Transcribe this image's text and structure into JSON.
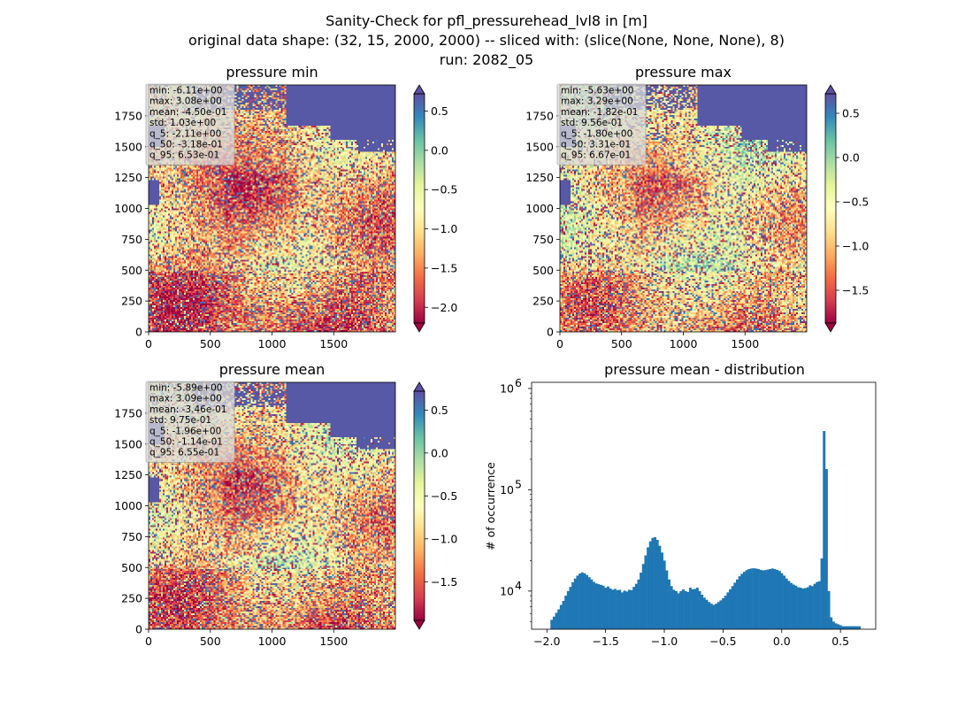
{
  "suptitle": {
    "line1": "Sanity-Check for pfl_pressurehead_lvl8 in [m]",
    "line2": "original data shape: (32, 15, 2000, 2000) -- sliced with: (slice(None, None, None), 8)",
    "line3": "run: 2082_05"
  },
  "colors": {
    "cmap": [
      "#9e0142",
      "#d53e4f",
      "#f46d43",
      "#fdae61",
      "#fee08b",
      "#ffffbf",
      "#e6f598",
      "#abdda4",
      "#66c2a5",
      "#3288bd",
      "#5e4fa2"
    ],
    "hist_bar": "#1f77b4"
  },
  "maps": [
    {
      "title": "pressure min",
      "xticks": [
        "0",
        "500",
        "1000",
        "1500"
      ],
      "yticks": [
        "0",
        "250",
        "500",
        "750",
        "1000",
        "1250",
        "1500",
        "1750"
      ],
      "colorbar": {
        "range": [
          -2.2,
          0.72
        ],
        "ticks": [
          "0.5",
          "0.0",
          "−0.5",
          "−1.0",
          "−1.5",
          "−2.0"
        ],
        "tick_values": [
          0.5,
          0.0,
          -0.5,
          -1.0,
          -1.5,
          -2.0
        ]
      },
      "stats": [
        "min: -6.11e+00",
        "max: 3.08e+00",
        "mean: -4.50e-01",
        "std: 1.03e+00",
        "q_5: -2.11e+00",
        "q_50: -3.18e-01",
        "q_95: 6.53e-01"
      ]
    },
    {
      "title": "pressure max",
      "xticks": [
        "0",
        "500",
        "1000",
        "1500"
      ],
      "yticks": [
        "0",
        "250",
        "500",
        "750",
        "1000",
        "1250",
        "1500",
        "1750"
      ],
      "colorbar": {
        "range": [
          -1.87,
          0.72
        ],
        "ticks": [
          "0.5",
          "0.0",
          "−0.5",
          "−1.0",
          "−1.5"
        ],
        "tick_values": [
          0.5,
          0.0,
          -0.5,
          -1.0,
          -1.5
        ]
      },
      "stats": [
        "min: -5.63e+00",
        "max: 3.29e+00",
        "mean: -1.82e-01",
        "std: 9.56e-01",
        "q_5: -1.80e+00",
        "q_50: 3.31e-01",
        "q_95: 6.67e-01"
      ]
    },
    {
      "title": "pressure mean",
      "xticks": [
        "0",
        "500",
        "1000",
        "1500"
      ],
      "yticks": [
        "0",
        "250",
        "500",
        "750",
        "1000",
        "1250",
        "1500",
        "1750"
      ],
      "colorbar": {
        "range": [
          -1.95,
          0.72
        ],
        "ticks": [
          "0.5",
          "0.0",
          "−0.5",
          "−1.0",
          "−1.5"
        ],
        "tick_values": [
          0.5,
          0.0,
          -0.5,
          -1.0,
          -1.5
        ]
      },
      "stats": [
        "min: -5.89e+00",
        "max: 3.09e+00",
        "mean: -3.46e-01",
        "std: 9.75e-01",
        "q_5: -1.96e+00",
        "q_50: -1.14e-01",
        "q_95: 6.55e-01"
      ]
    }
  ],
  "histogram": {
    "title": "pressure mean - distribution",
    "ylabel": "# of occurrence",
    "xticks": [
      "−2.0",
      "−1.5",
      "−1.0",
      "−0.5",
      "0.0",
      "0.5"
    ],
    "xtick_values": [
      -2.0,
      -1.5,
      -1.0,
      -0.5,
      0.0,
      0.5
    ],
    "ytick_labels": [
      {
        "base": "10",
        "exp": "4",
        "value": 10000
      },
      {
        "base": "10",
        "exp": "5",
        "value": 100000
      },
      {
        "base": "10",
        "exp": "6",
        "value": 1000000
      }
    ]
  },
  "chart_data": [
    {
      "type": "heatmap",
      "title": "pressure min",
      "x_range": [
        0,
        2000
      ],
      "y_range": [
        0,
        2000
      ],
      "colorbar_range": [
        -2.2,
        0.72
      ],
      "stats": {
        "min": -6.11,
        "max": 3.08,
        "mean": -0.45,
        "std": 1.03,
        "q_5": -2.11,
        "q_50": -0.318,
        "q_95": 0.653
      }
    },
    {
      "type": "heatmap",
      "title": "pressure max",
      "x_range": [
        0,
        2000
      ],
      "y_range": [
        0,
        2000
      ],
      "colorbar_range": [
        -1.87,
        0.72
      ],
      "stats": {
        "min": -5.63,
        "max": 3.29,
        "mean": -0.182,
        "std": 0.956,
        "q_5": -1.8,
        "q_50": 0.331,
        "q_95": 0.667
      }
    },
    {
      "type": "heatmap",
      "title": "pressure mean",
      "x_range": [
        0,
        2000
      ],
      "y_range": [
        0,
        2000
      ],
      "colorbar_range": [
        -1.95,
        0.72
      ],
      "stats": {
        "min": -5.89,
        "max": 3.09,
        "mean": -0.346,
        "std": 0.975,
        "q_5": -1.96,
        "q_50": -0.114,
        "q_95": 0.655
      }
    },
    {
      "type": "bar",
      "title": "pressure mean - distribution",
      "ylabel": "# of occurrence",
      "yscale": "log",
      "xlim": [
        -2.13,
        0.8
      ],
      "ylim": [
        4200,
        1150000
      ],
      "x": [
        -1.96,
        -1.94,
        -1.92,
        -1.9,
        -1.88,
        -1.86,
        -1.84,
        -1.82,
        -1.8,
        -1.78,
        -1.76,
        -1.74,
        -1.72,
        -1.7,
        -1.68,
        -1.66,
        -1.64,
        -1.62,
        -1.6,
        -1.58,
        -1.56,
        -1.54,
        -1.52,
        -1.5,
        -1.48,
        -1.46,
        -1.44,
        -1.42,
        -1.4,
        -1.38,
        -1.36,
        -1.34,
        -1.32,
        -1.3,
        -1.28,
        -1.26,
        -1.24,
        -1.22,
        -1.2,
        -1.18,
        -1.16,
        -1.14,
        -1.12,
        -1.1,
        -1.08,
        -1.06,
        -1.04,
        -1.02,
        -1.0,
        -0.98,
        -0.96,
        -0.94,
        -0.92,
        -0.9,
        -0.88,
        -0.86,
        -0.84,
        -0.82,
        -0.8,
        -0.78,
        -0.76,
        -0.74,
        -0.72,
        -0.7,
        -0.68,
        -0.66,
        -0.64,
        -0.62,
        -0.6,
        -0.58,
        -0.56,
        -0.54,
        -0.52,
        -0.5,
        -0.48,
        -0.46,
        -0.44,
        -0.42,
        -0.4,
        -0.38,
        -0.36,
        -0.34,
        -0.32,
        -0.3,
        -0.28,
        -0.26,
        -0.24,
        -0.22,
        -0.2,
        -0.18,
        -0.16,
        -0.14,
        -0.12,
        -0.1,
        -0.08,
        -0.06,
        -0.04,
        -0.02,
        0.0,
        0.02,
        0.04,
        0.06,
        0.08,
        0.1,
        0.12,
        0.14,
        0.16,
        0.18,
        0.2,
        0.22,
        0.24,
        0.26,
        0.28,
        0.3,
        0.32,
        0.34,
        0.36,
        0.38,
        0.4,
        0.42,
        0.44,
        0.46,
        0.48,
        0.5,
        0.52,
        0.54,
        0.56,
        0.58,
        0.6,
        0.62,
        0.64,
        0.66
      ],
      "values": [
        5200,
        5600,
        6100,
        6600,
        7300,
        8000,
        9000,
        10000,
        11000,
        12200,
        13300,
        14200,
        14900,
        15300,
        15000,
        14400,
        13700,
        13000,
        12300,
        11900,
        11700,
        11500,
        11300,
        10800,
        11100,
        10600,
        10300,
        10500,
        10200,
        10300,
        9700,
        10100,
        9900,
        10300,
        10200,
        11000,
        11800,
        13000,
        15200,
        18500,
        22500,
        27000,
        31000,
        33500,
        34000,
        32000,
        28000,
        24000,
        20000,
        16000,
        13000,
        11200,
        10300,
        10000,
        9500,
        10000,
        10400,
        10000,
        9800,
        10800,
        10400,
        10500,
        10800,
        10000,
        9200,
        8600,
        8200,
        7800,
        7500,
        7300,
        7500,
        7800,
        8100,
        8500,
        9000,
        9700,
        10400,
        11200,
        12100,
        13000,
        14000,
        14800,
        15500,
        16100,
        16500,
        16700,
        16800,
        16700,
        16500,
        16200,
        16000,
        16100,
        16300,
        16500,
        16700,
        16500,
        16200,
        15800,
        15000,
        14200,
        13300,
        12600,
        12000,
        11600,
        11300,
        10900,
        10800,
        10600,
        10700,
        10900,
        11400,
        11200,
        11800,
        12300,
        12500,
        21000,
        380000,
        160000,
        10000,
        5500,
        5000,
        4800,
        4700,
        4600,
        4500,
        4500,
        4500,
        4500,
        4500,
        4500,
        4500,
        4500
      ]
    }
  ]
}
